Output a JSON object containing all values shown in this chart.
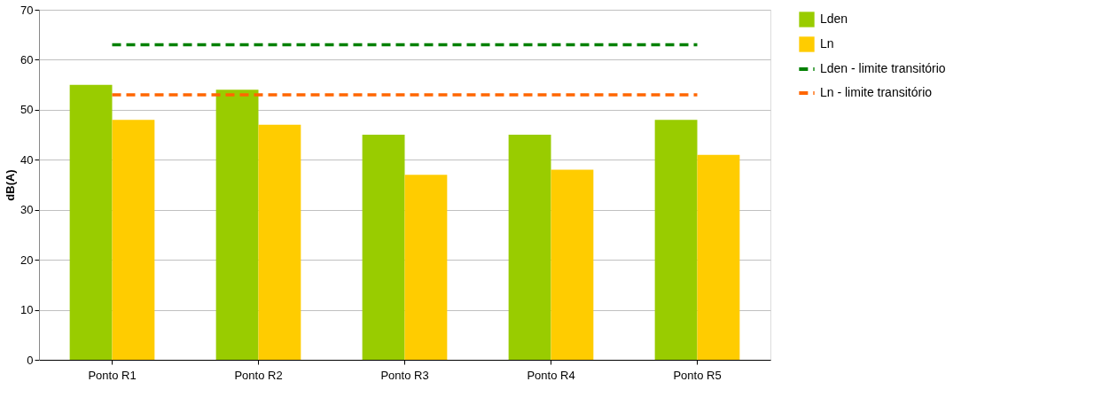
{
  "chart_data": {
    "type": "bar",
    "ylabel": "dB(A)",
    "categories": [
      "Ponto R1",
      "Ponto R2",
      "Ponto R3",
      "Ponto R4",
      "Ponto R5"
    ],
    "series": [
      {
        "name": "Lden",
        "color": "#99cc00",
        "values": [
          55,
          54,
          45,
          45,
          48
        ]
      },
      {
        "name": "Ln",
        "color": "#ffcc00",
        "values": [
          48,
          47,
          37,
          38,
          41
        ]
      },
      {
        "name": "Lden - limite transitório",
        "type": "line",
        "line_style": "dashed",
        "color": "#008000",
        "values": [
          63,
          63,
          63,
          63,
          63
        ]
      },
      {
        "name": "Ln - limite transitório",
        "type": "line",
        "line_style": "dashed",
        "color": "#ff6600",
        "values": [
          53,
          53,
          53,
          53,
          53
        ]
      }
    ],
    "ylim": [
      0,
      70
    ],
    "yticks": [
      0,
      10,
      20,
      30,
      40,
      50,
      60,
      70
    ],
    "grid": "y",
    "legend": "right"
  }
}
